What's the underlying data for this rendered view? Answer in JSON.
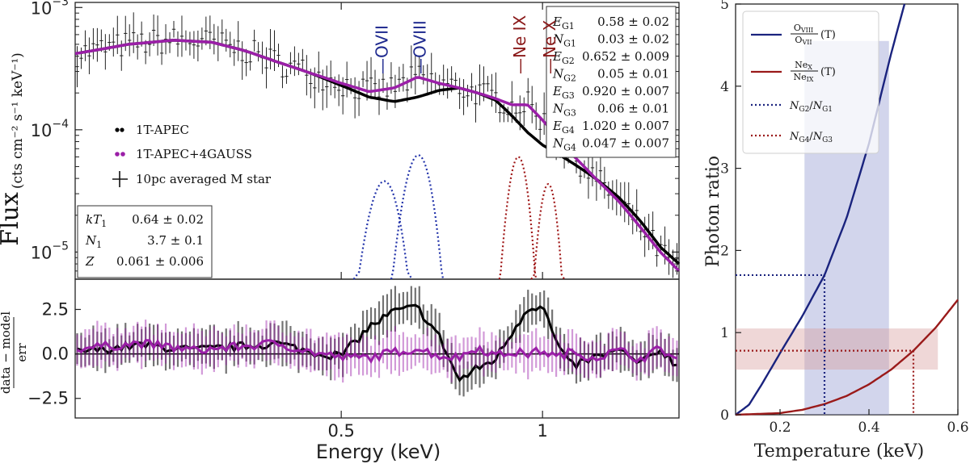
{
  "chart_data": [
    {
      "panel": "spectrum",
      "type": "line",
      "xscale": "log",
      "yscale": "log",
      "xlim": [
        0.2,
        1.6
      ],
      "ylim": [
        6e-06,
        0.0011
      ],
      "ylabel_main": "Flux",
      "ylabel_units": "(cts cm⁻² s⁻¹ keV⁻¹)",
      "y_ticks": [
        {
          "value": 1e-05,
          "base": "10",
          "exp": "−5"
        },
        {
          "value": 0.0001,
          "base": "10",
          "exp": "−4"
        },
        {
          "value": 0.001,
          "base": "10",
          "exp": "−3"
        }
      ],
      "legend": [
        {
          "label": "1T-APEC",
          "marker": "dots",
          "color": "#000000"
        },
        {
          "label": "1T-APEC+4GAUSS",
          "marker": "dots",
          "color": "#9b1fa8"
        },
        {
          "label": "10pc averaged M star",
          "marker": "cross",
          "color": "#111111"
        }
      ],
      "lines": [
        {
          "label": "OVII",
          "energy": 0.574,
          "color": "#1f2a8f"
        },
        {
          "label": "OVIII",
          "energy": 0.654,
          "color": "#1f2a8f"
        },
        {
          "label": "Ne IX",
          "energy": 0.922,
          "color": "#8b1a1a"
        },
        {
          "label": "Ne X",
          "energy": 1.022,
          "color": "#8b1a1a"
        }
      ],
      "series": [
        {
          "name": "1T-APEC",
          "color": "#000000",
          "x": [
            0.2,
            0.24,
            0.28,
            0.32,
            0.36,
            0.4,
            0.45,
            0.5,
            0.55,
            0.6,
            0.65,
            0.7,
            0.75,
            0.8,
            0.85,
            0.9,
            0.95,
            1.0,
            1.1,
            1.2,
            1.3,
            1.4,
            1.5,
            1.6
          ],
          "y": [
            0.00042,
            0.0005,
            0.00054,
            0.00052,
            0.00044,
            0.00036,
            0.00029,
            0.00023,
            0.000185,
            0.00017,
            0.000185,
            0.00021,
            0.00022,
            0.0002,
            0.000175,
            0.00013,
            9.5e-05,
            7.5e-05,
            5.5e-05,
            4e-05,
            2.8e-05,
            1.8e-05,
            1.1e-05,
            8e-06
          ]
        },
        {
          "name": "1T-APEC+4GAUSS",
          "color": "#9b1fa8",
          "x": [
            0.2,
            0.24,
            0.28,
            0.32,
            0.36,
            0.4,
            0.45,
            0.5,
            0.55,
            0.6,
            0.65,
            0.7,
            0.75,
            0.8,
            0.85,
            0.9,
            0.95,
            1.0,
            1.1,
            1.2,
            1.3,
            1.4,
            1.5,
            1.6
          ],
          "y": [
            0.00042,
            0.0005,
            0.00054,
            0.00052,
            0.00044,
            0.00036,
            0.00029,
            0.00024,
            0.000205,
            0.00022,
            0.00027,
            0.00024,
            0.00022,
            0.0002,
            0.00018,
            0.00016,
            0.00016,
            0.00012,
            6.5e-05,
            4e-05,
            2.6e-05,
            1.6e-05,
            1e-05,
            7e-06
          ]
        }
      ],
      "gaussians": [
        {
          "name": "G1",
          "center": 0.58,
          "peak": 3.8e-05,
          "color": "#2233aa"
        },
        {
          "name": "G2",
          "center": 0.652,
          "peak": 6.2e-05,
          "color": "#2233aa"
        },
        {
          "name": "G3",
          "center": 0.92,
          "peak": 6e-05,
          "color": "#a01818"
        },
        {
          "name": "G4",
          "center": 1.02,
          "peak": 3.6e-05,
          "color": "#a01818"
        }
      ],
      "param_box_right": [
        {
          "sym": "E",
          "sub": "G1",
          "val": "0.58 ± 0.02"
        },
        {
          "sym": "N",
          "sub": "G1",
          "val": "0.03 ± 0.02"
        },
        {
          "sym": "E",
          "sub": "G2",
          "val": "0.652 ± 0.009"
        },
        {
          "sym": "N",
          "sub": "G2",
          "val": "0.05 ± 0.01"
        },
        {
          "sym": "E",
          "sub": "G3",
          "val": "0.920 ± 0.007"
        },
        {
          "sym": "N",
          "sub": "G3",
          "val": "0.06 ± 0.01"
        },
        {
          "sym": "E",
          "sub": "G4",
          "val": "1.020 ± 0.007"
        },
        {
          "sym": "N",
          "sub": "G4",
          "val": "0.047 ± 0.007"
        }
      ],
      "param_box_left": [
        {
          "sym": "kT",
          "sub": "1",
          "val": "0.64 ± 0.02"
        },
        {
          "sym": "N",
          "sub": "1",
          "val": "3.7 ± 0.1"
        },
        {
          "sym": "Z",
          "sub": "",
          "val": "0.061 ± 0.006"
        }
      ]
    },
    {
      "panel": "residuals",
      "type": "line",
      "xscale": "log",
      "xlim": [
        0.2,
        1.6
      ],
      "ylim": [
        -3.6,
        4.2
      ],
      "xlabel": "Energy (keV)",
      "ylabel": "data − model / err",
      "ylabel_num": "data − model",
      "ylabel_den": "err",
      "x_ticks": [
        {
          "value": 0.5,
          "label": "0.5"
        },
        {
          "value": 1,
          "label": "1"
        }
      ],
      "y_ticks": [
        {
          "value": 2.5,
          "label": "2.5"
        },
        {
          "value": 0,
          "label": "0.0"
        },
        {
          "value": -2.5,
          "label": "−2.5"
        }
      ],
      "series": [
        {
          "name": "1T-APEC",
          "color": "#000000",
          "x": [
            0.2,
            0.25,
            0.3,
            0.35,
            0.4,
            0.45,
            0.5,
            0.55,
            0.6,
            0.65,
            0.7,
            0.75,
            0.8,
            0.85,
            0.9,
            0.95,
            1.0,
            1.05,
            1.1,
            1.2,
            1.3,
            1.4,
            1.5,
            1.6
          ],
          "y": [
            0.1,
            0.5,
            0.2,
            0.4,
            0.6,
            0.1,
            -0.1,
            1.5,
            2.4,
            2.6,
            1.0,
            -1.5,
            -0.8,
            -0.3,
            1.2,
            2.6,
            2.7,
            0.6,
            -0.7,
            -0.2,
            0.2,
            -0.6,
            0.3,
            -0.8
          ]
        },
        {
          "name": "1T-APEC+4GAUSS",
          "color": "#9b1fa8",
          "x": [
            0.2,
            0.25,
            0.3,
            0.35,
            0.4,
            0.45,
            0.5,
            0.55,
            0.6,
            0.65,
            0.7,
            0.75,
            0.8,
            0.85,
            0.9,
            0.95,
            1.0,
            1.05,
            1.1,
            1.2,
            1.3,
            1.4,
            1.5,
            1.6
          ],
          "y": [
            0.3,
            0.6,
            0.2,
            0.4,
            0.6,
            0.1,
            -0.2,
            -0.2,
            0.1,
            0.3,
            -0.1,
            -0.2,
            0.4,
            -0.1,
            0.1,
            0.0,
            0.2,
            -0.2,
            0.1,
            -0.2,
            0.2,
            -0.3,
            0.3,
            -0.4
          ]
        }
      ]
    },
    {
      "panel": "photon_ratio",
      "type": "line",
      "xlim": [
        0.1,
        0.6
      ],
      "ylim": [
        0,
        5
      ],
      "xlabel": "Temperature (keV)",
      "ylabel": "Photon ratio",
      "x_ticks": [
        {
          "value": 0.2,
          "label": "0.2"
        },
        {
          "value": 0.4,
          "label": "0.4"
        },
        {
          "value": 0.6,
          "label": "0.6"
        }
      ],
      "y_ticks": [
        {
          "value": 0,
          "label": "0"
        },
        {
          "value": 1,
          "label": "1"
        },
        {
          "value": 2,
          "label": "2"
        },
        {
          "value": 3,
          "label": "3"
        },
        {
          "value": 4,
          "label": "4"
        },
        {
          "value": 5,
          "label": "5"
        }
      ],
      "series": [
        {
          "name": "O_VIII / O_VII (T)",
          "color": "#1a237e",
          "x": [
            0.1,
            0.13,
            0.16,
            0.2,
            0.25,
            0.3,
            0.35,
            0.4,
            0.45,
            0.48
          ],
          "y": [
            0.0,
            0.12,
            0.38,
            0.75,
            1.2,
            1.7,
            2.4,
            3.3,
            4.4,
            5.0
          ]
        },
        {
          "name": "Ne_X / Ne_IX (T)",
          "color": "#9a1a1a",
          "x": [
            0.1,
            0.2,
            0.25,
            0.3,
            0.35,
            0.4,
            0.45,
            0.5,
            0.55,
            0.6
          ],
          "y": [
            0.0,
            0.02,
            0.06,
            0.13,
            0.23,
            0.37,
            0.55,
            0.78,
            1.06,
            1.4
          ]
        }
      ],
      "legend": [
        {
          "label_num": "O",
          "label_num_sub": "VIII",
          "label_den": "O",
          "label_den_sub": "VII",
          "suffix": "(T)",
          "style": "solid",
          "color": "#1a237e"
        },
        {
          "label_num": "Ne",
          "label_num_sub": "X",
          "label_den": "Ne",
          "label_den_sub": "IX",
          "suffix": "(T)",
          "style": "solid",
          "color": "#9a1a1a"
        },
        {
          "label": "N_G2/N_G1",
          "style": "dotted",
          "color": "#1a237e"
        },
        {
          "label": "N_G4/N_G3",
          "style": "dotted",
          "color": "#9a1a1a"
        }
      ],
      "bands": [
        {
          "name": "OVIII/OVII ratio band",
          "x": [
            0.255,
            0.445
          ],
          "y": [
            0,
            4.55
          ],
          "color": "#8f96cf"
        },
        {
          "name": "NeX/NeIX ratio band",
          "x": [
            0.1,
            0.555
          ],
          "y": [
            0.55,
            1.05
          ],
          "color": "#d89b9b"
        }
      ],
      "markers": [
        {
          "name": "oxygen",
          "ratio": 1.7,
          "temperature": 0.3,
          "color": "#1a237e"
        },
        {
          "name": "neon",
          "ratio": 0.78,
          "temperature": 0.5,
          "color": "#9a1a1a"
        }
      ]
    }
  ]
}
